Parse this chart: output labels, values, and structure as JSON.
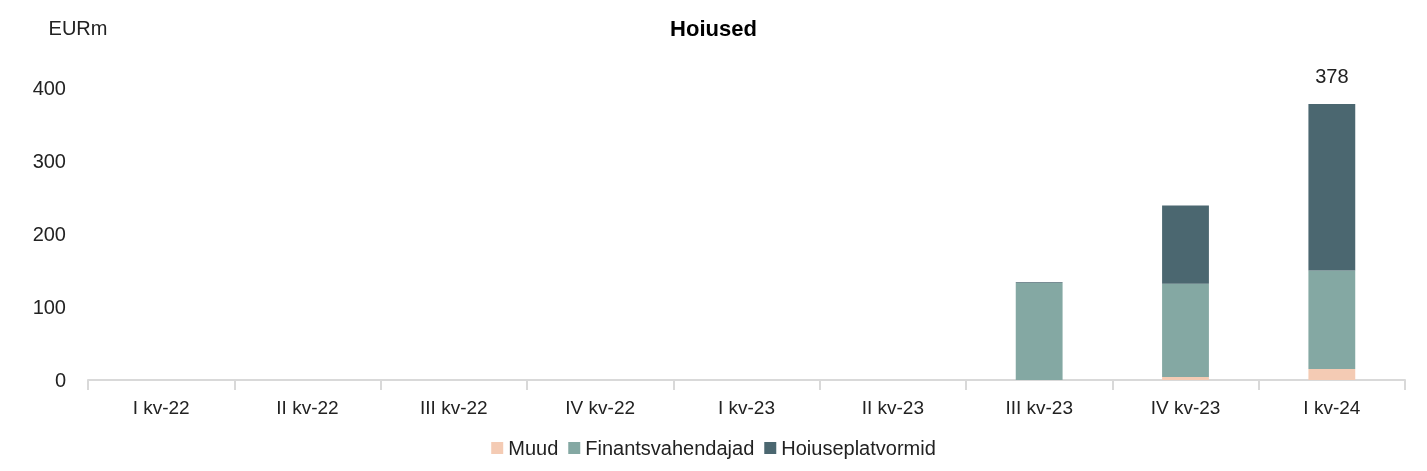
{
  "chart_data": {
    "type": "bar",
    "title": "Hoiused",
    "ylabel": "EURm",
    "stacked": true,
    "categories": [
      "I kv-22",
      "II kv-22",
      "III kv-22",
      "IV kv-22",
      "I kv-23",
      "II kv-23",
      "III kv-23",
      "IV kv-23",
      "I kv-24"
    ],
    "series": [
      {
        "name": "Muud",
        "color": "#f4cbb4",
        "values": [
          0,
          0,
          0,
          0,
          0,
          0,
          null,
          4,
          15
        ]
      },
      {
        "name": "Finantsvahendajad",
        "color": "#84a8a3",
        "values": [
          0,
          0,
          0,
          0,
          0,
          0,
          133,
          128,
          135
        ]
      },
      {
        "name": "Hoiuseplatvormid",
        "color": "#4b6770",
        "values": [
          0,
          0,
          0,
          0,
          0,
          0,
          1,
          107,
          228
        ]
      }
    ],
    "totals": [
      null,
      null,
      null,
      null,
      null,
      null,
      null,
      null,
      "378"
    ],
    "ylim": [
      0,
      400
    ],
    "yticks": [
      0,
      100,
      200,
      300,
      400
    ],
    "grid": false,
    "legend": "bottom"
  }
}
